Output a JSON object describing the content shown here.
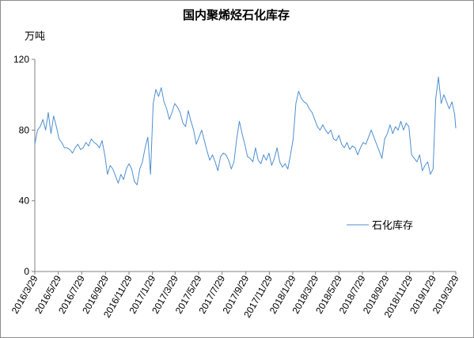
{
  "title": "国内聚烯烃石化库存",
  "unit_label": "万吨",
  "colors": {
    "line": "#4f8fd0",
    "axis": "#808080"
  },
  "chart_data": {
    "type": "line",
    "title": "国内聚烯烃石化库存",
    "ylabel": "万吨",
    "ylim": [
      0,
      120
    ],
    "yticks": [
      0,
      40,
      80,
      120
    ],
    "legend_position": "right-middle",
    "grid": false,
    "x_ticks": [
      "2016/3/29",
      "2016/5/29",
      "2016/7/29",
      "2016/9/29",
      "2016/11/29",
      "2017/1/29",
      "2017/3/29",
      "2017/5/29",
      "2017/7/29",
      "2017/9/29",
      "2017/11/29",
      "2018/1/29",
      "2018/3/29",
      "2018/5/29",
      "2018/7/29",
      "2018/9/29",
      "2018/11/29",
      "2019/1/29",
      "2019/3/29"
    ],
    "series": [
      {
        "name": "石化库存",
        "x": [
          "2016/3/29",
          "2016/4/5",
          "2016/4/12",
          "2016/4/19",
          "2016/4/26",
          "2016/5/3",
          "2016/5/10",
          "2016/5/17",
          "2016/5/24",
          "2016/5/31",
          "2016/6/7",
          "2016/6/14",
          "2016/6/21",
          "2016/6/28",
          "2016/7/5",
          "2016/7/12",
          "2016/7/19",
          "2016/7/26",
          "2016/8/2",
          "2016/8/9",
          "2016/8/16",
          "2016/8/23",
          "2016/8/30",
          "2016/9/6",
          "2016/9/13",
          "2016/9/20",
          "2016/9/27",
          "2016/10/4",
          "2016/10/11",
          "2016/10/18",
          "2016/10/25",
          "2016/11/1",
          "2016/11/8",
          "2016/11/15",
          "2016/11/22",
          "2016/11/29",
          "2016/12/6",
          "2016/12/13",
          "2016/12/20",
          "2016/12/27",
          "2017/1/3",
          "2017/1/10",
          "2017/1/17",
          "2017/1/24",
          "2017/1/31",
          "2017/2/7",
          "2017/2/14",
          "2017/2/21",
          "2017/2/28",
          "2017/3/7",
          "2017/3/14",
          "2017/3/21",
          "2017/3/28",
          "2017/4/4",
          "2017/4/11",
          "2017/4/18",
          "2017/4/25",
          "2017/5/2",
          "2017/5/9",
          "2017/5/16",
          "2017/5/23",
          "2017/5/30",
          "2017/6/6",
          "2017/6/13",
          "2017/6/20",
          "2017/6/27",
          "2017/7/4",
          "2017/7/11",
          "2017/7/18",
          "2017/7/25",
          "2017/8/1",
          "2017/8/8",
          "2017/8/15",
          "2017/8/22",
          "2017/8/29",
          "2017/9/5",
          "2017/9/12",
          "2017/9/19",
          "2017/9/26",
          "2017/10/3",
          "2017/10/10",
          "2017/10/17",
          "2017/10/24",
          "2017/10/31",
          "2017/11/7",
          "2017/11/14",
          "2017/11/21",
          "2017/11/28",
          "2017/12/5",
          "2017/12/12",
          "2017/12/19",
          "2017/12/26",
          "2018/1/2",
          "2018/1/9",
          "2018/1/16",
          "2018/1/23",
          "2018/1/30",
          "2018/2/6",
          "2018/2/13",
          "2018/2/20",
          "2018/2/27",
          "2018/3/6",
          "2018/3/13",
          "2018/3/20",
          "2018/3/27",
          "2018/4/3",
          "2018/4/10",
          "2018/4/17",
          "2018/4/24",
          "2018/5/1",
          "2018/5/8",
          "2018/5/15",
          "2018/5/22",
          "2018/5/29",
          "2018/6/5",
          "2018/6/12",
          "2018/6/19",
          "2018/6/26",
          "2018/7/3",
          "2018/7/10",
          "2018/7/17",
          "2018/7/24",
          "2018/7/31",
          "2018/8/7",
          "2018/8/14",
          "2018/8/21",
          "2018/8/28",
          "2018/9/4",
          "2018/9/11",
          "2018/9/18",
          "2018/9/25",
          "2018/10/2",
          "2018/10/9",
          "2018/10/16",
          "2018/10/23",
          "2018/10/30",
          "2018/11/6",
          "2018/11/13",
          "2018/11/20",
          "2018/11/27",
          "2018/12/4",
          "2018/12/11",
          "2018/12/18",
          "2018/12/25",
          "2019/1/1",
          "2019/1/8",
          "2019/1/15",
          "2019/1/22",
          "2019/1/29",
          "2019/2/5",
          "2019/2/12",
          "2019/2/19",
          "2019/2/26",
          "2019/3/5",
          "2019/3/12",
          "2019/3/19",
          "2019/3/26",
          "2019/3/29"
        ],
        "values": [
          72,
          80,
          82,
          86,
          80,
          90,
          78,
          88,
          82,
          75,
          73,
          70,
          70,
          69,
          67,
          70,
          72,
          69,
          70,
          73,
          71,
          75,
          73,
          72,
          70,
          74,
          66,
          55,
          60,
          58,
          54,
          50,
          55,
          52,
          58,
          61,
          58,
          51,
          49,
          58,
          62,
          70,
          76,
          55,
          95,
          103,
          99,
          104,
          96,
          92,
          86,
          90,
          95,
          93,
          90,
          84,
          82,
          91,
          85,
          80,
          72,
          76,
          80,
          74,
          68,
          63,
          66,
          62,
          57,
          65,
          67,
          66,
          63,
          58,
          62,
          75,
          85,
          78,
          72,
          65,
          64,
          62,
          70,
          63,
          61,
          66,
          63,
          67,
          60,
          64,
          70,
          62,
          59,
          61,
          58,
          66,
          75,
          95,
          102,
          98,
          96,
          95,
          92,
          90,
          86,
          82,
          80,
          83,
          80,
          78,
          80,
          75,
          74,
          77,
          72,
          70,
          73,
          69,
          71,
          70,
          66,
          70,
          73,
          72,
          76,
          80,
          76,
          72,
          68,
          64,
          75,
          78,
          83,
          78,
          82,
          80,
          85,
          80,
          84,
          82,
          66,
          64,
          62,
          66,
          57,
          60,
          62,
          55,
          58,
          98,
          110,
          95,
          100,
          96,
          92,
          96,
          89,
          81
        ]
      }
    ]
  }
}
